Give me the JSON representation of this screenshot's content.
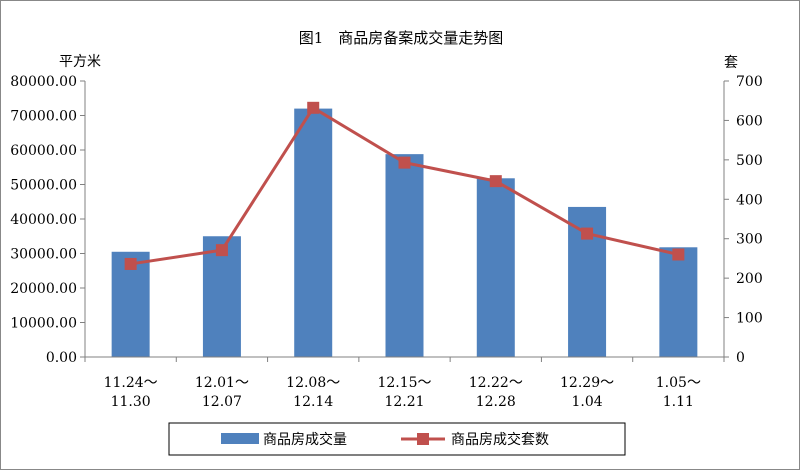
{
  "chart_data": {
    "type": "bar",
    "title": "图1　商品房备案成交量走势图",
    "categories": [
      [
        "11.24～",
        "11.30"
      ],
      [
        "12.01～",
        "12.07"
      ],
      [
        "12.08～",
        "12.14"
      ],
      [
        "12.15～",
        "12.21"
      ],
      [
        "12.22～",
        "12.28"
      ],
      [
        "12.29～",
        "1.04"
      ],
      [
        "1.05～",
        "1.11"
      ]
    ],
    "left_axis": {
      "label": "平方米",
      "range": [
        0,
        80000
      ],
      "ticks": [
        "0.00",
        "10000.00",
        "20000.00",
        "30000.00",
        "40000.00",
        "50000.00",
        "60000.00",
        "70000.00",
        "80000.00"
      ]
    },
    "right_axis": {
      "label": "套",
      "range": [
        0,
        700
      ],
      "ticks": [
        "0",
        "100",
        "200",
        "300",
        "400",
        "500",
        "600",
        "700"
      ]
    },
    "series": [
      {
        "name": "商品房成交量",
        "type": "bar",
        "axis": "left",
        "color": "#4f81bd",
        "values": [
          30500,
          35000,
          72000,
          58800,
          51800,
          43500,
          31800
        ]
      },
      {
        "name": "商品房成交套数",
        "type": "line",
        "axis": "right",
        "color": "#c0504d",
        "values": [
          236,
          271,
          632,
          493,
          446,
          313,
          260
        ]
      }
    ],
    "grid": false,
    "legend_position": "bottom"
  }
}
